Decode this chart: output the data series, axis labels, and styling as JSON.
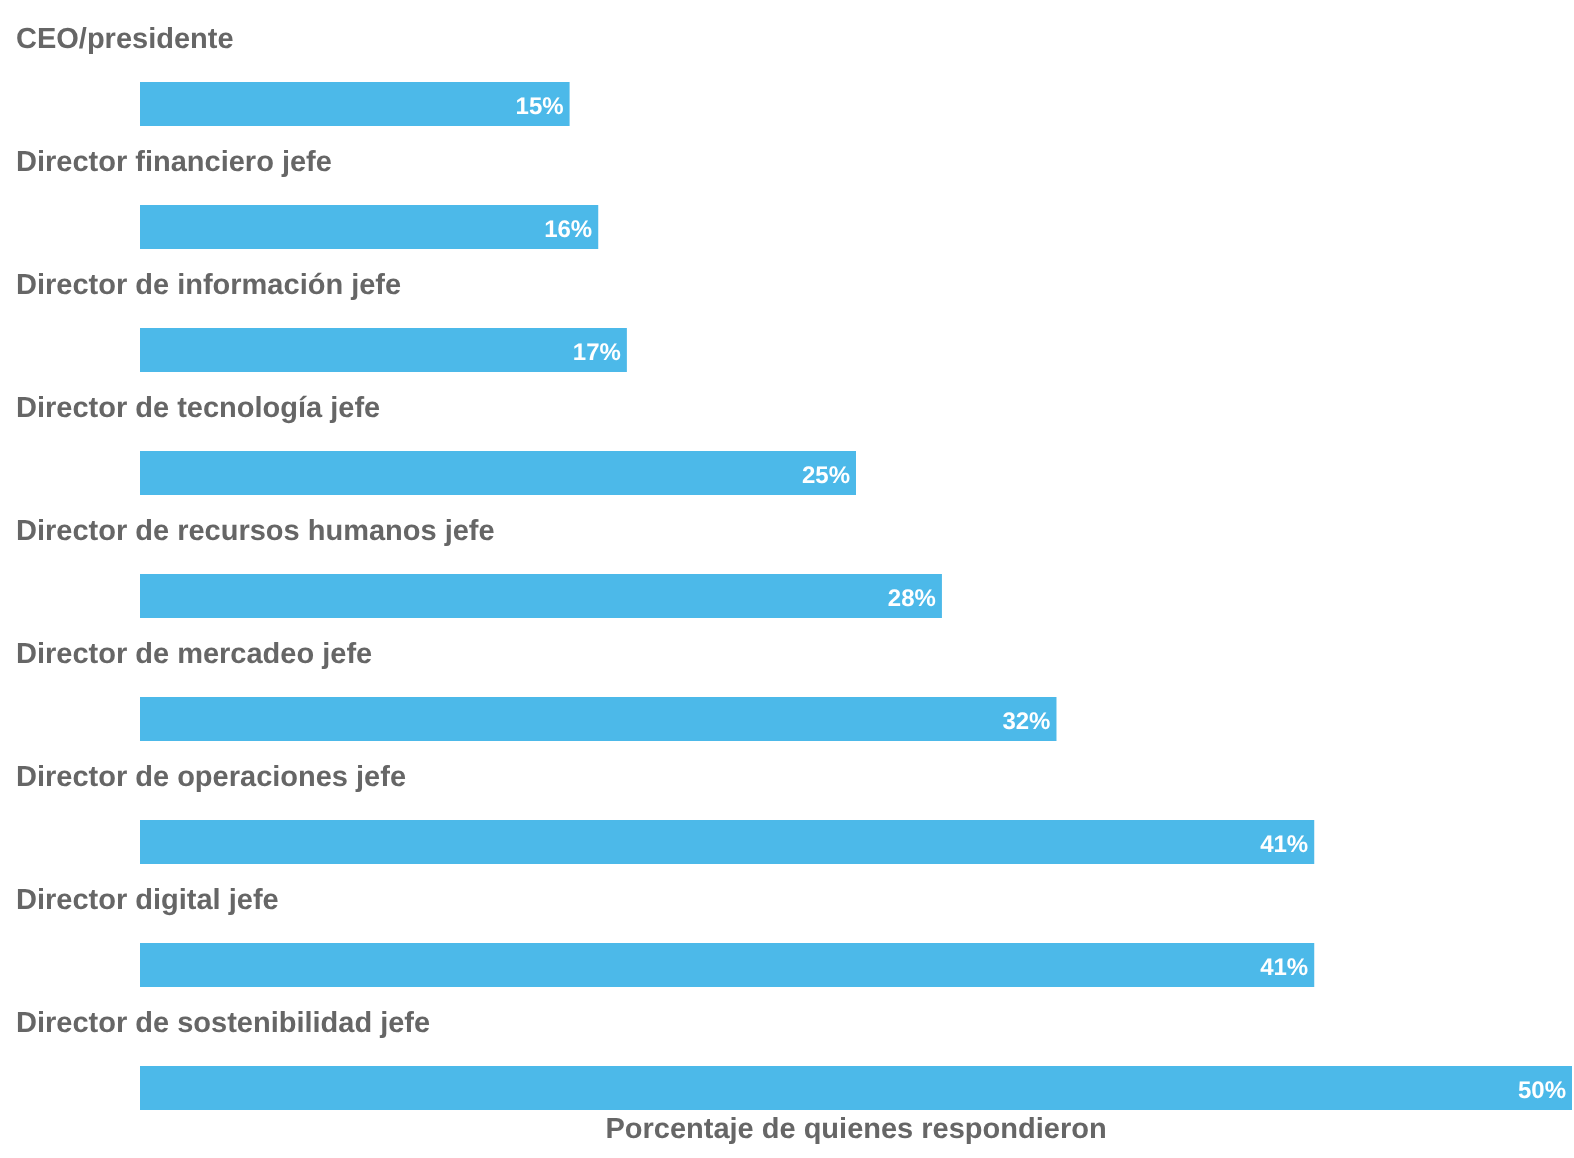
{
  "chart_data": {
    "type": "bar",
    "orientation": "horizontal",
    "xlabel": "Porcentaje de quienes respondieron",
    "categories": [
      "CEO/presidente",
      "Director financiero jefe",
      "Director de información jefe",
      "Director de tecnología jefe",
      "Director de recursos humanos jefe",
      "Director de mercadeo jefe",
      "Director de operaciones jefe",
      "Director digital jefe",
      "Director de sostenibilidad jefe"
    ],
    "values": [
      15,
      16,
      17,
      25,
      28,
      32,
      41,
      41,
      50
    ],
    "value_labels": [
      "15%",
      "16%",
      "17%",
      "25%",
      "28%",
      "32%",
      "41%",
      "41%",
      "50%"
    ],
    "color": "#4cb9e9"
  }
}
